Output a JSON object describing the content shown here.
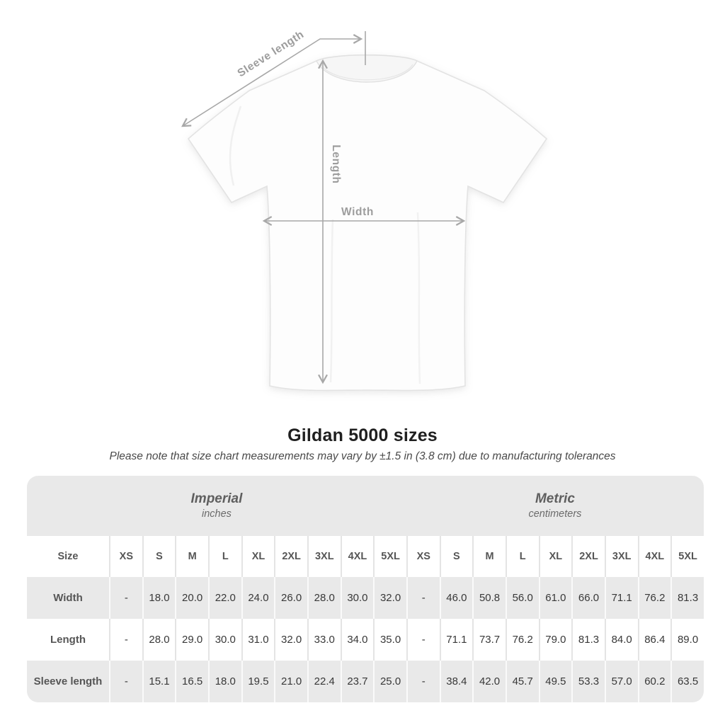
{
  "diagram": {
    "labels": {
      "sleeve_length": "Sleeve length",
      "length": "Length",
      "width": "Width"
    },
    "annotation_color": "#a8a8a8",
    "label_color": "#9d9d9d"
  },
  "title": "Gildan 5000 sizes",
  "subtitle": "Please note that size chart measurements may vary by ±1.5 in (3.8 cm) due to manufacturing tolerances",
  "table": {
    "unit_groups": [
      {
        "name": "Imperial",
        "unit": "inches"
      },
      {
        "name": "Metric",
        "unit": "centimeters"
      }
    ],
    "size_label": "Size",
    "sizes": [
      "XS",
      "S",
      "M",
      "L",
      "XL",
      "2XL",
      "3XL",
      "4XL",
      "5XL"
    ],
    "rows": [
      {
        "label": "Width",
        "imperial": [
          "-",
          "18.0",
          "20.0",
          "22.0",
          "24.0",
          "26.0",
          "28.0",
          "30.0",
          "32.0"
        ],
        "metric": [
          "-",
          "46.0",
          "50.8",
          "56.0",
          "61.0",
          "66.0",
          "71.1",
          "76.2",
          "81.3"
        ]
      },
      {
        "label": "Length",
        "imperial": [
          "-",
          "28.0",
          "29.0",
          "30.0",
          "31.0",
          "32.0",
          "33.0",
          "34.0",
          "35.0"
        ],
        "metric": [
          "-",
          "71.1",
          "73.7",
          "76.2",
          "79.0",
          "81.3",
          "84.0",
          "86.4",
          "89.0"
        ]
      },
      {
        "label": "Sleeve length",
        "imperial": [
          "-",
          "15.1",
          "16.5",
          "18.0",
          "19.5",
          "21.0",
          "22.4",
          "23.7",
          "25.0"
        ],
        "metric": [
          "-",
          "38.4",
          "42.0",
          "45.7",
          "49.5",
          "53.3",
          "57.0",
          "60.2",
          "63.5"
        ]
      }
    ]
  },
  "colors": {
    "table_band_gray": "#e9e9e9",
    "separator_on_white": "#e4e4e4",
    "separator_on_gray": "#fafafa",
    "title_text": "#1f1f1f",
    "table_value_text": "#383838",
    "table_label_text": "#565656"
  }
}
